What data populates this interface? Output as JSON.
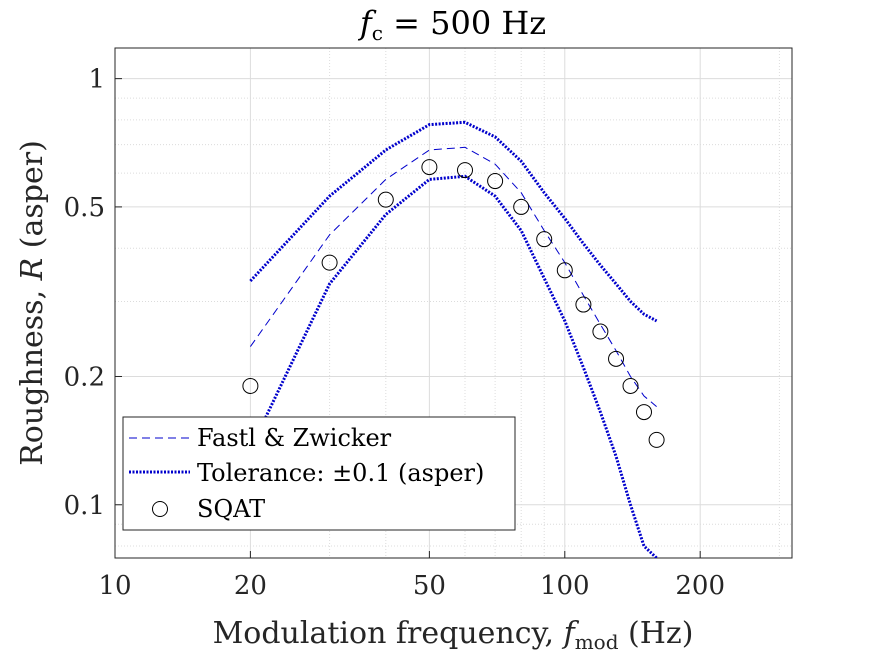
{
  "chart_data": {
    "type": "line",
    "title": {
      "main": "f",
      "sub": "c",
      "rest": " = 500 Hz"
    },
    "xlabel": {
      "main": "Modulation frequency, ",
      "var": "f",
      "sub": "mod",
      "rest": " (Hz)"
    },
    "ylabel": {
      "main": "Roughness, ",
      "var": "R",
      "rest": " (asper)"
    },
    "x_scale": "log",
    "y_scale": "log",
    "xlim": [
      10,
      320
    ],
    "ylim": [
      0.075,
      1.18
    ],
    "xticks": [
      10,
      20,
      50,
      100,
      200
    ],
    "xtick_labels": [
      "10",
      "20",
      "50",
      "100",
      "200"
    ],
    "yticks": [
      0.1,
      0.2,
      0.5,
      1
    ],
    "ytick_labels": [
      "0.1",
      "0.2",
      "0.5",
      "1"
    ],
    "grid": true,
    "minor_grid": true,
    "legend_position": "bottom-left",
    "colors": {
      "reference": "#0000cc",
      "tolerance": "#0000cc",
      "sqat": "#000000",
      "grid": "#dcdcdc",
      "axis": "#262626"
    },
    "series": [
      {
        "name": "Fastl & Zwicker",
        "style": "dashed",
        "x": [
          20,
          30,
          40,
          50,
          60,
          70,
          80,
          90,
          100,
          110,
          120,
          130,
          140,
          150,
          160
        ],
        "y": [
          0.235,
          0.43,
          0.58,
          0.68,
          0.69,
          0.63,
          0.54,
          0.44,
          0.37,
          0.31,
          0.265,
          0.23,
          0.2,
          0.18,
          0.17
        ]
      },
      {
        "name": "Tolerance: ±0.1 (asper)",
        "style": "dotted-thick",
        "x": [
          20,
          30,
          40,
          50,
          60,
          70,
          80,
          90,
          100,
          110,
          120,
          130,
          140,
          150,
          160
        ],
        "y": [
          0.335,
          0.53,
          0.68,
          0.78,
          0.79,
          0.73,
          0.64,
          0.54,
          0.47,
          0.41,
          0.365,
          0.33,
          0.3,
          0.28,
          0.27
        ]
      },
      {
        "name": "",
        "style": "dotted-thick",
        "x": [
          20,
          30,
          40,
          50,
          60,
          70,
          80,
          90,
          100,
          110,
          120,
          130,
          140,
          150,
          160
        ],
        "y": [
          0.135,
          0.33,
          0.48,
          0.58,
          0.59,
          0.53,
          0.44,
          0.34,
          0.27,
          0.21,
          0.165,
          0.13,
          0.1,
          0.08,
          0.075
        ]
      },
      {
        "name": "SQAT",
        "style": "marker-circle",
        "x": [
          20,
          30,
          40,
          50,
          60,
          70,
          80,
          90,
          100,
          110,
          120,
          130,
          140,
          150,
          160
        ],
        "y": [
          0.19,
          0.37,
          0.52,
          0.62,
          0.61,
          0.575,
          0.5,
          0.42,
          0.355,
          0.295,
          0.255,
          0.22,
          0.19,
          0.165,
          0.142
        ]
      }
    ]
  }
}
